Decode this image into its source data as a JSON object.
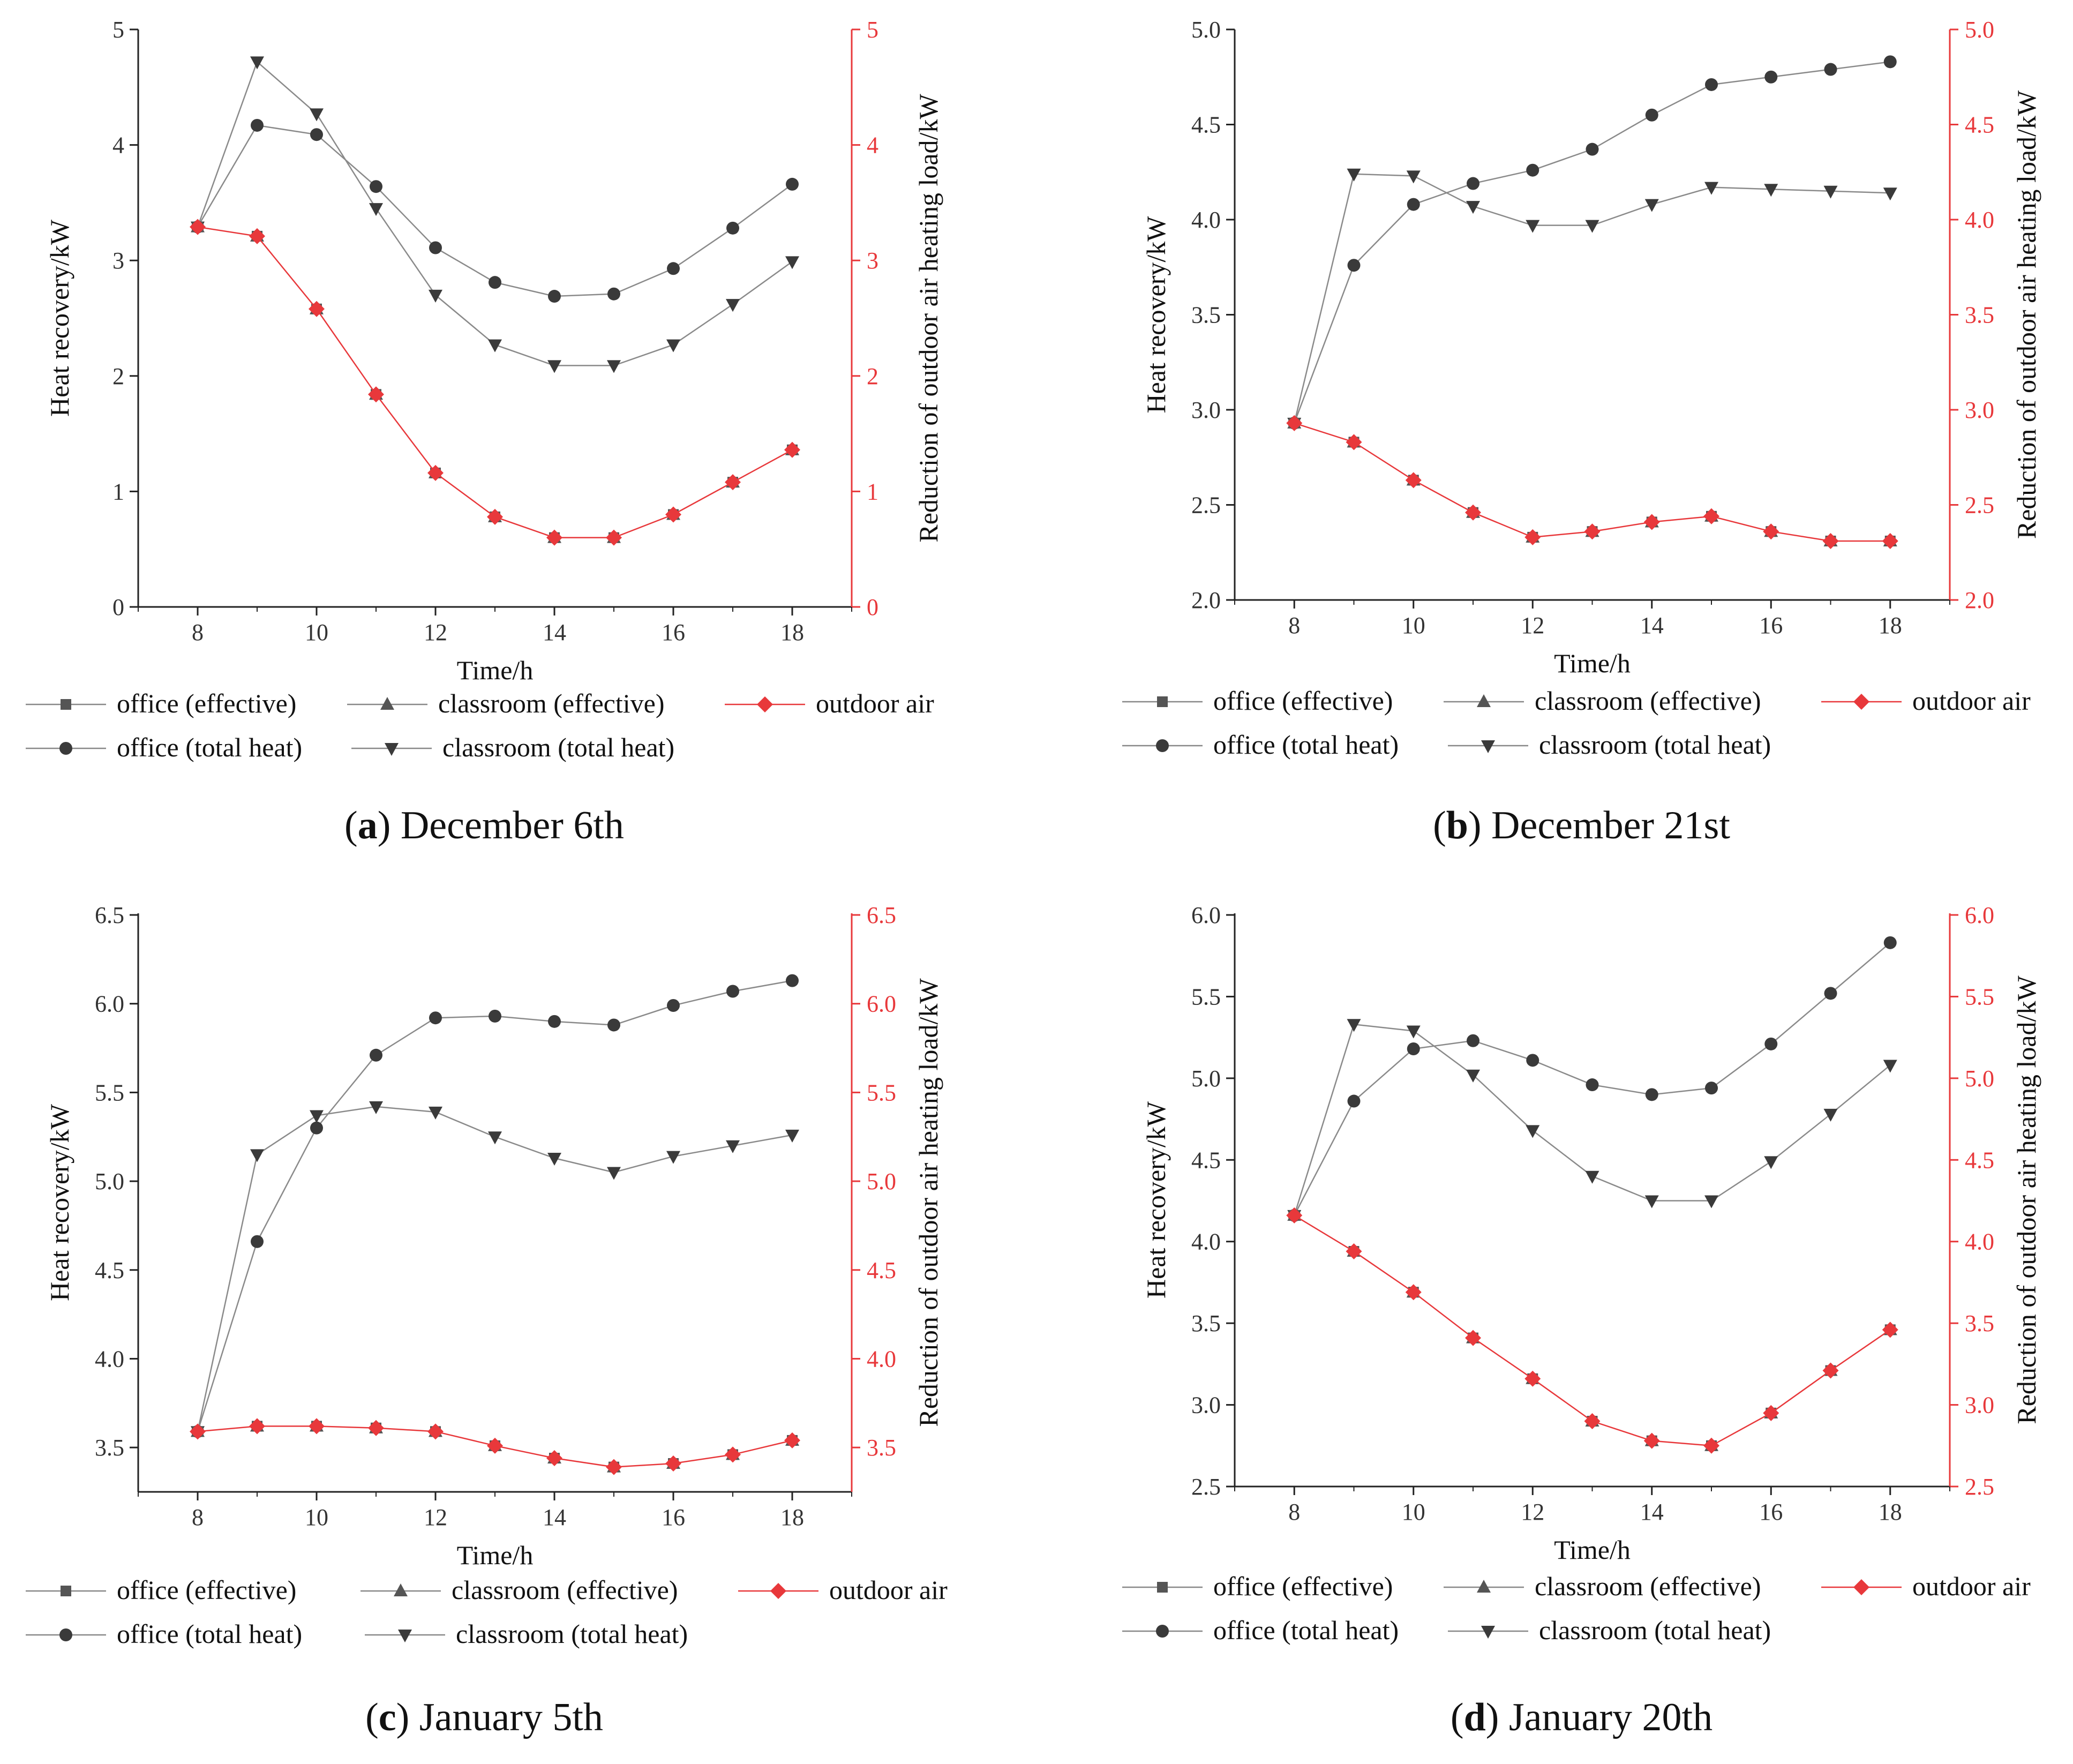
{
  "figure": {
    "legend": {
      "office_effective": "office (effective)",
      "classroom_effective": "classroom (effective)",
      "outdoor_air": "outdoor air",
      "office_total": "office (total heat)",
      "classroom_total": "classroom (total heat)"
    },
    "colors": {
      "gray": "#555555",
      "red": "#e8383b",
      "axis": "#222222"
    }
  },
  "chart_data": [
    {
      "type": "line",
      "caption_letter": "a",
      "caption_text": ") December 6th",
      "caption_open": "(",
      "xlabel": "Time/h",
      "ylabel": "Heat recovery/kW",
      "ylabel_right": "Reduction of outdoor air heating load/kW",
      "xlim": [
        7,
        19
      ],
      "xticks": [
        8,
        10,
        12,
        14,
        16,
        18
      ],
      "ylim": [
        0,
        5
      ],
      "yticks": [
        0,
        1,
        2,
        3,
        4,
        5
      ],
      "yticklabels": [
        "0",
        "1",
        "2",
        "3",
        "4",
        "5"
      ],
      "x": [
        8,
        9,
        10,
        11,
        12,
        13,
        14,
        15,
        16,
        17,
        18
      ],
      "series": [
        {
          "name": "office (effective)",
          "values": [
            3.29,
            3.21,
            2.58,
            1.84,
            1.16,
            0.78,
            0.6,
            0.6,
            0.8,
            1.08,
            1.36
          ]
        },
        {
          "name": "classroom (effective)",
          "values": [
            3.29,
            3.21,
            2.58,
            1.84,
            1.16,
            0.78,
            0.6,
            0.6,
            0.8,
            1.08,
            1.36
          ]
        },
        {
          "name": "outdoor air",
          "values": [
            3.29,
            3.21,
            2.58,
            1.84,
            1.16,
            0.78,
            0.6,
            0.6,
            0.8,
            1.08,
            1.36
          ]
        },
        {
          "name": "office (total heat)",
          "values": [
            3.29,
            4.17,
            4.09,
            3.64,
            3.11,
            2.81,
            2.69,
            2.71,
            2.93,
            3.28,
            3.66
          ]
        },
        {
          "name": "classroom (total heat)",
          "values": [
            3.29,
            4.72,
            4.27,
            3.45,
            2.7,
            2.27,
            2.09,
            2.09,
            2.27,
            2.62,
            2.99
          ]
        }
      ]
    },
    {
      "type": "line",
      "caption_letter": "b",
      "caption_text": ") December 21st",
      "caption_open": "(",
      "xlabel": "Time/h",
      "ylabel": "Heat recovery/kW",
      "ylabel_right": "Reduction of outdoor air heating load/kW",
      "xlim": [
        7,
        19
      ],
      "xticks": [
        8,
        10,
        12,
        14,
        16,
        18
      ],
      "ylim": [
        2.0,
        5.0
      ],
      "yticks": [
        2.0,
        2.5,
        3.0,
        3.5,
        4.0,
        4.5,
        5.0
      ],
      "yticklabels": [
        "2.0",
        "2.5",
        "3.0",
        "3.5",
        "4.0",
        "4.5",
        "5.0"
      ],
      "x": [
        8,
        9,
        10,
        11,
        12,
        13,
        14,
        15,
        16,
        17,
        18
      ],
      "series": [
        {
          "name": "office (effective)",
          "values": [
            2.93,
            2.83,
            2.63,
            2.46,
            2.33,
            2.36,
            2.41,
            2.44,
            2.36,
            2.31,
            2.31
          ]
        },
        {
          "name": "classroom (effective)",
          "values": [
            2.93,
            2.83,
            2.63,
            2.46,
            2.33,
            2.36,
            2.41,
            2.44,
            2.36,
            2.31,
            2.31
          ]
        },
        {
          "name": "outdoor air",
          "values": [
            2.93,
            2.83,
            2.63,
            2.46,
            2.33,
            2.36,
            2.41,
            2.44,
            2.36,
            2.31,
            2.31
          ]
        },
        {
          "name": "office (total heat)",
          "values": [
            2.93,
            3.76,
            4.08,
            4.19,
            4.26,
            4.37,
            4.55,
            4.71,
            4.75,
            4.79,
            4.83
          ]
        },
        {
          "name": "classroom (total heat)",
          "values": [
            2.93,
            4.24,
            4.23,
            4.07,
            3.97,
            3.97,
            4.08,
            4.17,
            4.16,
            4.15,
            4.14
          ]
        }
      ]
    },
    {
      "type": "line",
      "caption_letter": "c",
      "caption_text": ") January 5th",
      "caption_open": "(",
      "xlabel": "Time/h",
      "ylabel": "Heat recovery/kW",
      "ylabel_right": "Reduction of outdoor air heating load/kW",
      "xlim": [
        7,
        19
      ],
      "xticks": [
        8,
        10,
        12,
        14,
        16,
        18
      ],
      "ylim": [
        3.25,
        6.5
      ],
      "yticks": [
        3.5,
        4.0,
        4.5,
        5.0,
        5.5,
        6.0,
        6.5
      ],
      "yticklabels": [
        "3.5",
        "4.0",
        "4.5",
        "5.0",
        "5.5",
        "6.0",
        "6.5"
      ],
      "x": [
        8,
        9,
        10,
        11,
        12,
        13,
        14,
        15,
        16,
        17,
        18
      ],
      "series": [
        {
          "name": "office (effective)",
          "values": [
            3.59,
            3.62,
            3.62,
            3.61,
            3.59,
            3.51,
            3.44,
            3.39,
            3.41,
            3.46,
            3.54
          ]
        },
        {
          "name": "classroom (effective)",
          "values": [
            3.59,
            3.62,
            3.62,
            3.61,
            3.59,
            3.51,
            3.44,
            3.39,
            3.41,
            3.46,
            3.54
          ]
        },
        {
          "name": "outdoor air",
          "values": [
            3.59,
            3.62,
            3.62,
            3.61,
            3.59,
            3.51,
            3.44,
            3.39,
            3.41,
            3.46,
            3.54
          ]
        },
        {
          "name": "office (total heat)",
          "values": [
            3.59,
            4.66,
            5.3,
            5.71,
            5.92,
            5.93,
            5.9,
            5.88,
            5.99,
            6.07,
            6.13
          ]
        },
        {
          "name": "classroom (total heat)",
          "values": [
            3.59,
            5.15,
            5.37,
            5.42,
            5.39,
            5.25,
            5.13,
            5.05,
            5.14,
            5.2,
            5.26
          ]
        }
      ]
    },
    {
      "type": "line",
      "caption_letter": "d",
      "caption_text": ") January 20th",
      "caption_open": "(",
      "xlabel": "Time/h",
      "ylabel": "Heat recovery/kW",
      "ylabel_right": "Reduction of outdoor air heating load/kW",
      "xlim": [
        7,
        19
      ],
      "xticks": [
        8,
        10,
        12,
        14,
        16,
        18
      ],
      "ylim": [
        2.5,
        6.0
      ],
      "yticks": [
        2.5,
        3.0,
        3.5,
        4.0,
        4.5,
        5.0,
        5.5,
        6.0
      ],
      "yticklabels": [
        "2.5",
        "3.0",
        "3.5",
        "4.0",
        "4.5",
        "5.0",
        "5.5",
        "6.0"
      ],
      "x": [
        8,
        9,
        10,
        11,
        12,
        13,
        14,
        15,
        16,
        17,
        18
      ],
      "series": [
        {
          "name": "office (effective)",
          "values": [
            4.16,
            3.94,
            3.69,
            3.41,
            3.16,
            2.9,
            2.78,
            2.75,
            2.95,
            3.21,
            3.46
          ]
        },
        {
          "name": "classroom (effective)",
          "values": [
            4.16,
            3.94,
            3.69,
            3.41,
            3.16,
            2.9,
            2.78,
            2.75,
            2.95,
            3.21,
            3.46
          ]
        },
        {
          "name": "outdoor air",
          "values": [
            4.16,
            3.94,
            3.69,
            3.41,
            3.16,
            2.9,
            2.78,
            2.75,
            2.95,
            3.21,
            3.46
          ]
        },
        {
          "name": "office (total heat)",
          "values": [
            4.16,
            4.86,
            5.18,
            5.23,
            5.11,
            4.96,
            4.9,
            4.94,
            5.21,
            5.52,
            5.83
          ]
        },
        {
          "name": "classroom (total heat)",
          "values": [
            4.16,
            5.33,
            5.29,
            5.02,
            4.68,
            4.4,
            4.25,
            4.25,
            4.49,
            4.78,
            5.08
          ]
        }
      ]
    }
  ]
}
